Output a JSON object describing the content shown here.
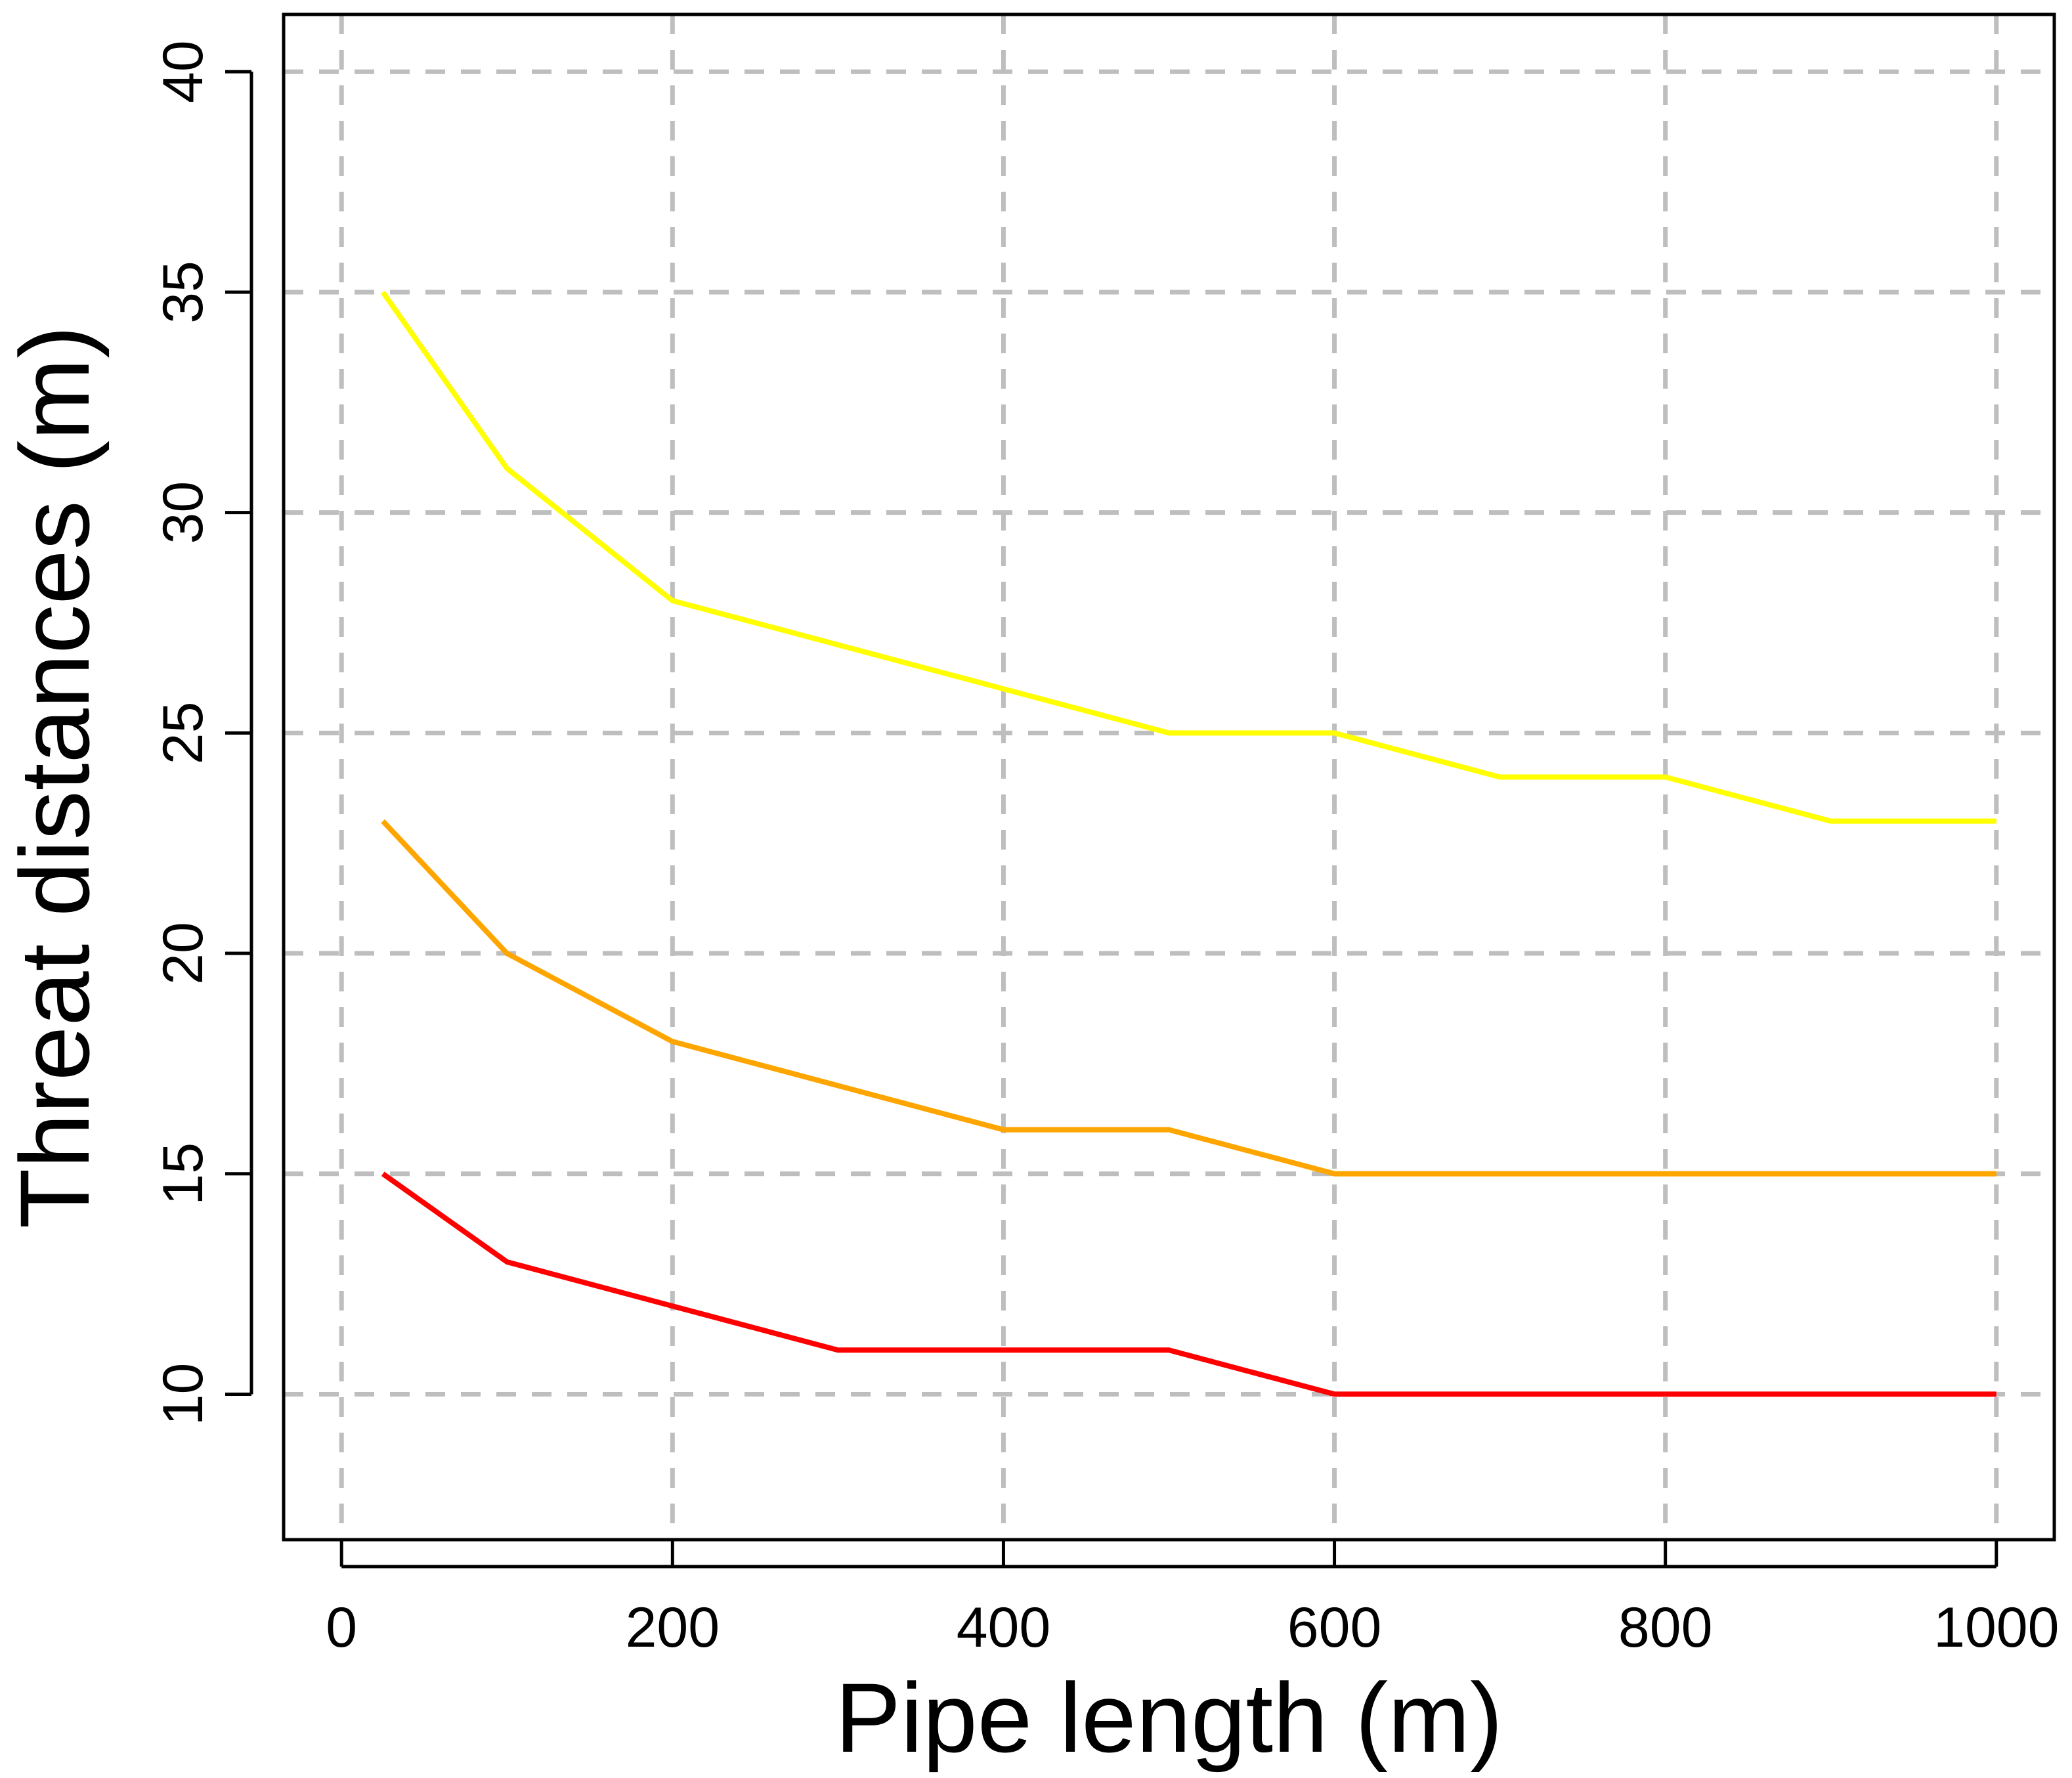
{
  "chart_data": {
    "type": "line",
    "title": "",
    "xlabel": "Pipe length (m)",
    "ylabel": "Threat distances (m)",
    "xlim": [
      -35,
      1035
    ],
    "ylim": [
      6.7,
      41.3
    ],
    "x_ticks": [
      0,
      200,
      400,
      600,
      800,
      1000
    ],
    "y_ticks": [
      10,
      15,
      20,
      25,
      30,
      35,
      40
    ],
    "x_tick_labels": [
      "0",
      "200",
      "400",
      "600",
      "800",
      "1000"
    ],
    "y_tick_labels": [
      "10",
      "15",
      "20",
      "25",
      "30",
      "35",
      "40"
    ],
    "grid": true,
    "legend": "none",
    "series": [
      {
        "color": "#FFFF00",
        "x": [
          25,
          100,
          200,
          300,
          400,
          500,
          600,
          700,
          800,
          900,
          1000
        ],
        "y": [
          35,
          31,
          28,
          27,
          26,
          25,
          25,
          24,
          24,
          23,
          23
        ]
      },
      {
        "color": "#FFA500",
        "x": [
          25,
          100,
          200,
          300,
          400,
          500,
          600,
          700,
          800,
          900,
          1000
        ],
        "y": [
          23,
          20,
          18,
          17,
          16,
          16,
          15,
          15,
          15,
          15,
          15
        ]
      },
      {
        "color": "#FF0000",
        "x": [
          25,
          100,
          200,
          300,
          400,
          500,
          600,
          700,
          800,
          900,
          1000
        ],
        "y": [
          15,
          13,
          12,
          11,
          11,
          11,
          10,
          10,
          10,
          10,
          10
        ]
      }
    ],
    "grid_color": "#BEBEBE"
  }
}
